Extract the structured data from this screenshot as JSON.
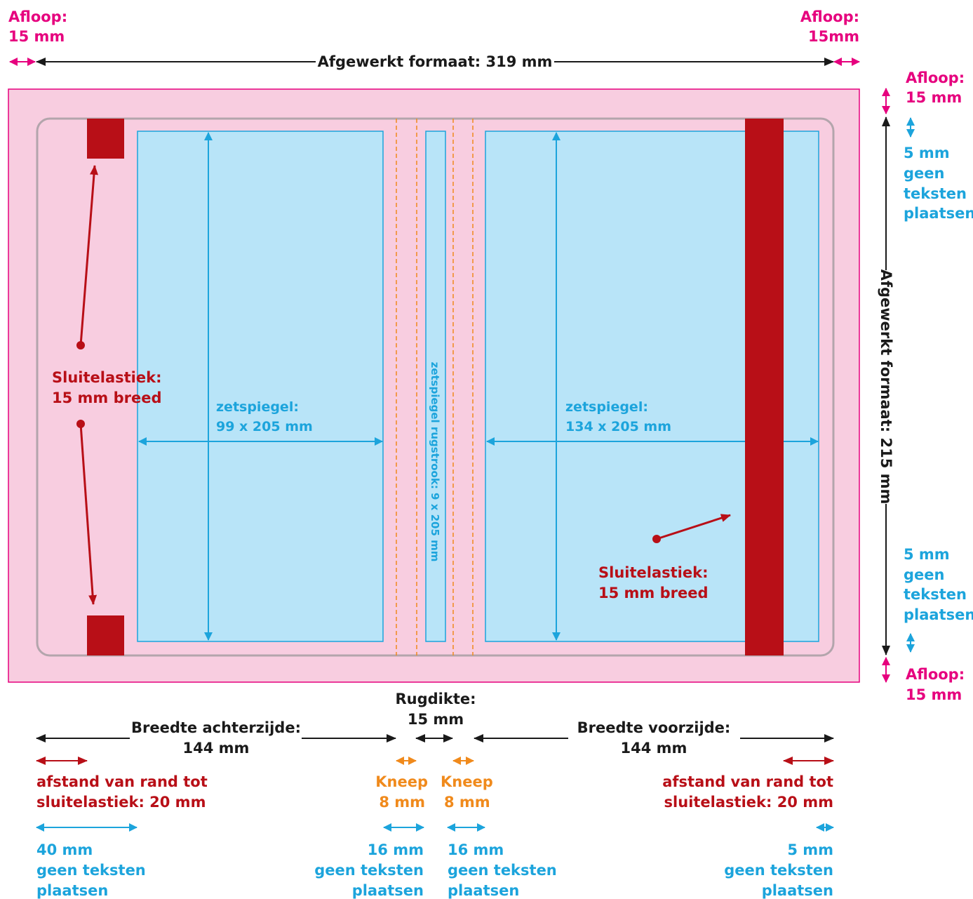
{
  "colors": {
    "bleed_fill": "#f8cde0",
    "bleed_border": "#e6007e",
    "text_area_fill": "#b8e4f8",
    "blue": "#1ca4dc",
    "red": "#b80f17",
    "orange": "#f08a1c",
    "black": "#1a1a1a",
    "grey_line": "#b3a5ac",
    "magenta": "#e6007e"
  },
  "icons": {
    "double_arrow": "left-right-arrow-icon",
    "vertical_double_arrow": "up-down-arrow-icon"
  },
  "top": {
    "bleed_left_line1": "Afloop:",
    "bleed_left_line2": "15 mm",
    "bleed_right_line1": "Afloop:",
    "bleed_right_line2": "15mm",
    "finished_width": "Afgewerkt formaat: 319 mm"
  },
  "right": {
    "bleed_top_line1": "Afloop:",
    "bleed_top_line2": "15 mm",
    "no_text_top": [
      "5 mm",
      "geen",
      "teksten",
      "plaatsen"
    ],
    "finished_height": "Afgewerkt formaat: 215 mm",
    "no_text_bottom": [
      "5 mm",
      "geen",
      "teksten",
      "plaatsen"
    ],
    "bleed_bottom_line1": "Afloop:",
    "bleed_bottom_line2": "15 mm"
  },
  "inside": {
    "back_label_line1": "zetspiegel:",
    "back_label_line2": "99 x 205 mm",
    "spine_label": "zetspiegel rugstrook: 9 x 205 mm",
    "front_label_line1": "zetspiegel:",
    "front_label_line2": "134 x 205 mm",
    "elastic_left_line1": "Sluitelastiek:",
    "elastic_left_line2": "15 mm breed",
    "elastic_right_line1": "Sluitelastiek:",
    "elastic_right_line2": "15 mm breed"
  },
  "bottom": {
    "back_width_line1": "Breedte achterzijde:",
    "back_width_line2": "144 mm",
    "spine_line1": "Rugdikte:",
    "spine_line2": "15 mm",
    "front_width_line1": "Breedte voorzijde:",
    "front_width_line2": "144 mm",
    "elastic_dist_left_line1": "afstand van rand tot",
    "elastic_dist_left_line2": "sluitelastiek: 20 mm",
    "kneep_left_line1": "Kneep",
    "kneep_left_line2": "8 mm",
    "kneep_right_line1": "Kneep",
    "kneep_right_line2": "8 mm",
    "elastic_dist_right_line1": "afstand van rand tot",
    "elastic_dist_right_line2": "sluitelastiek: 20 mm",
    "no_text_40": [
      "40 mm",
      "geen teksten",
      "plaatsen"
    ],
    "no_text_16_left": [
      "16 mm",
      "geen teksten",
      "plaatsen"
    ],
    "no_text_16_right": [
      "16 mm",
      "geen teksten",
      "plaatsen"
    ],
    "no_text_5": [
      "5 mm",
      "geen teksten",
      "plaatsen"
    ]
  }
}
